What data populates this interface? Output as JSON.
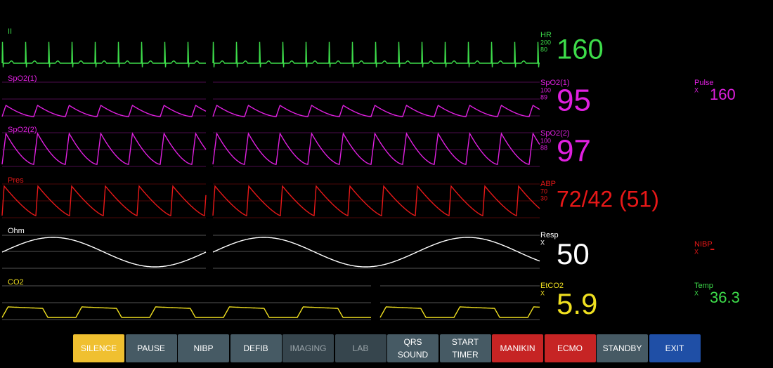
{
  "waveforms": [
    {
      "label": "II",
      "color": "#3ddc4a"
    },
    {
      "label": "SpO2(1)",
      "color": "#e020e0"
    },
    {
      "label": "SpO2(2)",
      "color": "#e020e0"
    },
    {
      "label": "Pres",
      "color": "#e81818"
    },
    {
      "label": "Ohm",
      "color": "#ffffff"
    },
    {
      "label": "CO2",
      "color": "#f0e020"
    }
  ],
  "vitals": [
    {
      "label": "HR",
      "scale": [
        "200",
        "80"
      ],
      "value": "160",
      "color": "#3ddc4a"
    },
    {
      "label": "SpO2(1)",
      "scale": [
        "100",
        "89"
      ],
      "value": "95",
      "color": "#e020e0"
    },
    {
      "label": "SpO2(2)",
      "scale": [
        "100",
        "88"
      ],
      "value": "97",
      "color": "#e020e0"
    },
    {
      "label": "ABP",
      "scale": [
        "70",
        "30"
      ],
      "value": "72/42 (51)",
      "color": "#e81818"
    },
    {
      "label": "Resp",
      "scale": [
        "X"
      ],
      "value": "50",
      "color": "#ffffff"
    },
    {
      "label": "EtCO2",
      "scale": [
        "X"
      ],
      "value": "5.9",
      "color": "#f0e020"
    }
  ],
  "side_vitals": [
    {
      "label": "Pulse",
      "scale": "X",
      "value": "160",
      "color": "#e020e0"
    },
    {
      "label": "NIBP",
      "scale": "X",
      "value": "-",
      "color": "#e81818"
    },
    {
      "label": "Temp",
      "scale": "X",
      "value": "36.3",
      "color": "#3ddc4a"
    }
  ],
  "buttons": [
    {
      "lines": [
        "SILENCE"
      ],
      "color": "#f0c030"
    },
    {
      "lines": [
        "PAUSE"
      ],
      "color": "#465a64"
    },
    {
      "lines": [
        "NIBP"
      ],
      "color": "#465a64"
    },
    {
      "lines": [
        "DEFIB"
      ],
      "color": "#465a64"
    },
    {
      "lines": [
        "IMAGING"
      ],
      "color": "#36454d"
    },
    {
      "lines": [
        "LAB"
      ],
      "color": "#36454d"
    },
    {
      "lines": [
        "QRS",
        "SOUND"
      ],
      "color": "#465a64"
    },
    {
      "lines": [
        "START",
        "TIMER"
      ],
      "color": "#465a64"
    },
    {
      "lines": [
        "MANIKIN"
      ],
      "color": "#c62424"
    },
    {
      "lines": [
        "ECMO"
      ],
      "color": "#c62424"
    },
    {
      "lines": [
        "STANDBY"
      ],
      "color": "#465a64"
    },
    {
      "lines": [
        "EXIT"
      ],
      "color": "#1f4fa6"
    }
  ]
}
